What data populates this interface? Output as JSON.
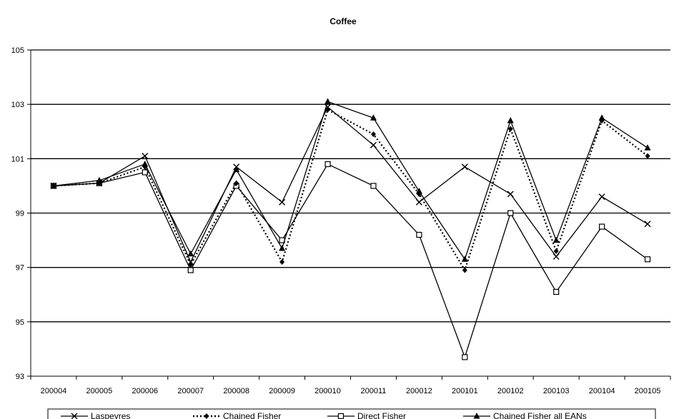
{
  "chart_data": {
    "type": "line",
    "title": "Coffee",
    "xlabel": "",
    "ylabel": "",
    "x": [
      "200004",
      "200005",
      "200006",
      "200007",
      "200008",
      "200009",
      "200010",
      "200011",
      "200012",
      "200101",
      "200102",
      "200103",
      "200104",
      "200105"
    ],
    "ylim": [
      93,
      105
    ],
    "yticks": [
      93,
      95,
      97,
      99,
      101,
      103,
      105
    ],
    "grid": true,
    "legend": "bottom",
    "series": [
      {
        "name": "Laspeyres",
        "marker": "x",
        "line": "solid",
        "color": "#000000",
        "values": [
          100.0,
          100.1,
          101.1,
          97.2,
          100.7,
          99.4,
          102.9,
          101.5,
          99.4,
          100.7,
          99.7,
          97.4,
          99.6,
          98.6
        ]
      },
      {
        "name": "Chained Fisher",
        "marker": "diamond",
        "line": "dotted",
        "color": "#000000",
        "values": [
          100.0,
          100.1,
          100.7,
          97.1,
          100.1,
          97.2,
          102.8,
          101.9,
          99.7,
          96.9,
          102.1,
          97.6,
          102.4,
          101.1
        ]
      },
      {
        "name": "Direct Fisher",
        "marker": "square",
        "line": "solid",
        "color": "#000000",
        "values": [
          100.0,
          100.1,
          100.5,
          96.9,
          100.0,
          98.0,
          100.8,
          100.0,
          98.2,
          93.7,
          99.0,
          96.1,
          98.5,
          97.3
        ]
      },
      {
        "name": "Chained Fisher all EANs",
        "marker": "triangle",
        "line": "solid",
        "color": "#000000",
        "values": [
          100.0,
          100.2,
          100.8,
          97.5,
          100.6,
          97.7,
          103.1,
          102.5,
          99.8,
          97.3,
          102.4,
          98.0,
          102.5,
          101.4
        ]
      }
    ]
  }
}
